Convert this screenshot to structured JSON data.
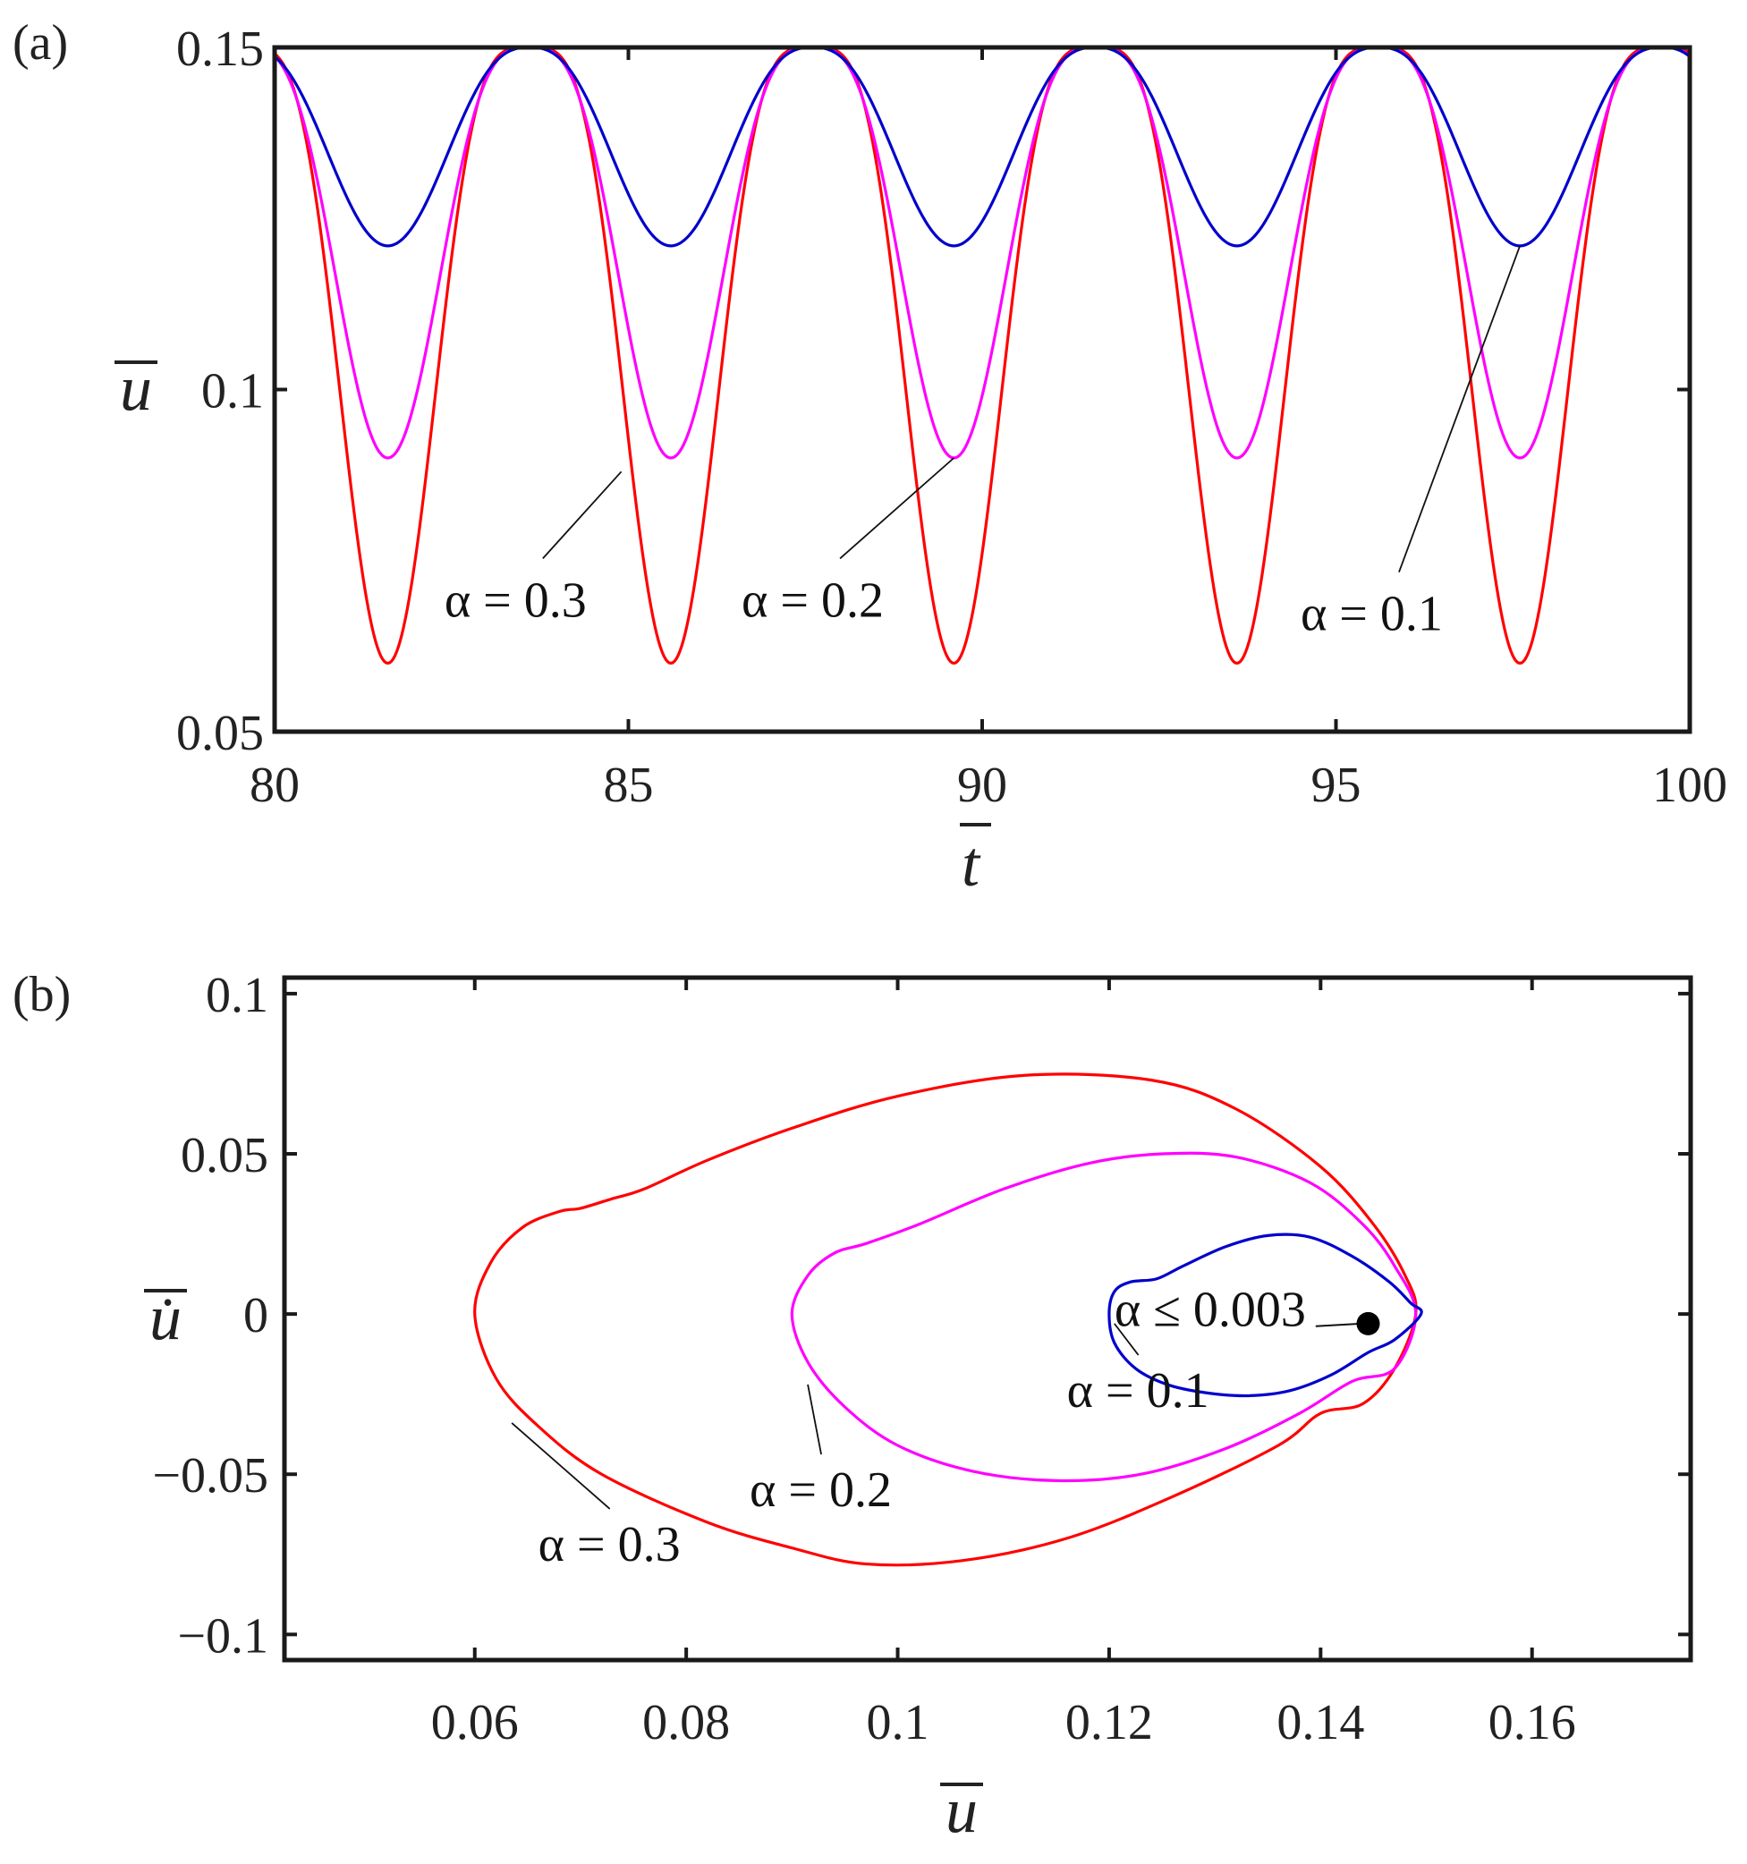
{
  "chart_data": [
    {
      "panel": "(a)",
      "type": "line",
      "xlabel": "t",
      "ylabel": "u",
      "xlim": [
        80,
        100
      ],
      "ylim": [
        0.05,
        0.15
      ],
      "xticks": [
        80,
        85,
        90,
        95,
        100
      ],
      "xtick_labels": [
        "80",
        "85",
        "90",
        "95",
        "100"
      ],
      "yticks": [
        0.05,
        0.1,
        0.15
      ],
      "ytick_labels": [
        "0.05",
        "0.1",
        "0.15"
      ],
      "period": 4,
      "first_max_t": 83.6,
      "first_min_t": 81.6,
      "series": [
        {
          "name": "α = 0.3",
          "label": "α = 0.3",
          "color": "#ff0000",
          "max": 0.15,
          "min": 0.06
        },
        {
          "name": "α = 0.2",
          "label": "α = 0.2",
          "color": "#ff00ff",
          "max": 0.15,
          "min": 0.09
        },
        {
          "name": "α = 0.1",
          "label": "α = 0.1",
          "color": "#0000cc",
          "max": 0.15,
          "min": 0.121
        }
      ],
      "annotations": [
        {
          "text": "α = 0.3",
          "series": "α = 0.3",
          "label_at": [
            82.4,
            0.074
          ],
          "points_to": [
            84.9,
            0.088
          ]
        },
        {
          "text": "α = 0.2",
          "series": "α = 0.2",
          "label_at": [
            86.6,
            0.074
          ],
          "points_to": [
            89.6,
            0.09
          ]
        },
        {
          "text": "α = 0.1",
          "series": "α = 0.1",
          "label_at": [
            94.5,
            0.072
          ],
          "points_to": [
            97.6,
            0.121
          ]
        }
      ]
    },
    {
      "panel": "(b)",
      "type": "line",
      "xlabel": "u",
      "ylabel": "u̇",
      "xlim": [
        0.042,
        0.175
      ],
      "ylim": [
        -0.108,
        0.105
      ],
      "xticks": [
        0.06,
        0.08,
        0.1,
        0.12,
        0.14,
        0.16
      ],
      "xtick_labels": [
        "0.06",
        "0.08",
        "0.1",
        "0.12",
        "0.14",
        "0.16"
      ],
      "yticks": [
        -0.1,
        -0.05,
        0,
        0.05,
        0.1
      ],
      "ytick_labels": [
        "−0.1",
        "−0.05",
        "0",
        "0.05",
        "0.1"
      ],
      "series": [
        {
          "name": "α = 0.3",
          "color": "#ff0000",
          "upper": [
            [
              0.06,
              0
            ],
            [
              0.0615,
              0.016
            ],
            [
              0.0645,
              0.027
            ],
            [
              0.068,
              0.032
            ],
            [
              0.07,
              0.033
            ],
            [
              0.073,
              0.036
            ],
            [
              0.076,
              0.039
            ],
            [
              0.082,
              0.048
            ],
            [
              0.09,
              0.058
            ],
            [
              0.1,
              0.068
            ],
            [
              0.112,
              0.0745
            ],
            [
              0.124,
              0.073
            ],
            [
              0.132,
              0.064
            ],
            [
              0.14,
              0.046
            ],
            [
              0.145,
              0.028
            ],
            [
              0.148,
              0.012
            ],
            [
              0.149,
              0
            ]
          ],
          "lower": [
            [
              0.06,
              0
            ],
            [
              0.062,
              -0.02
            ],
            [
              0.066,
              -0.035
            ],
            [
              0.072,
              -0.05
            ],
            [
              0.082,
              -0.065
            ],
            [
              0.09,
              -0.073
            ],
            [
              0.097,
              -0.078
            ],
            [
              0.106,
              -0.077
            ],
            [
              0.116,
              -0.07
            ],
            [
              0.126,
              -0.057
            ],
            [
              0.136,
              -0.041
            ],
            [
              0.14,
              -0.031
            ],
            [
              0.144,
              -0.028
            ],
            [
              0.147,
              -0.017
            ],
            [
              0.149,
              0
            ]
          ]
        },
        {
          "name": "α = 0.2",
          "color": "#ff00ff",
          "upper": [
            [
              0.09,
              0
            ],
            [
              0.0915,
              0.012
            ],
            [
              0.094,
              0.019
            ],
            [
              0.097,
              0.022
            ],
            [
              0.102,
              0.028
            ],
            [
              0.11,
              0.039
            ],
            [
              0.118,
              0.047
            ],
            [
              0.125,
              0.05
            ],
            [
              0.132,
              0.049
            ],
            [
              0.139,
              0.041
            ],
            [
              0.144,
              0.028
            ],
            [
              0.147,
              0.015
            ],
            [
              0.149,
              0
            ]
          ],
          "lower": [
            [
              0.09,
              0
            ],
            [
              0.0915,
              -0.015
            ],
            [
              0.095,
              -0.029
            ],
            [
              0.1,
              -0.041
            ],
            [
              0.107,
              -0.049
            ],
            [
              0.115,
              -0.052
            ],
            [
              0.123,
              -0.05
            ],
            [
              0.131,
              -0.042
            ],
            [
              0.138,
              -0.031
            ],
            [
              0.143,
              -0.021
            ],
            [
              0.147,
              -0.017
            ],
            [
              0.149,
              0
            ]
          ]
        },
        {
          "name": "α = 0.1",
          "color": "#0000cc",
          "upper": [
            [
              0.12,
              0
            ],
            [
              0.1205,
              0.007
            ],
            [
              0.122,
              0.01
            ],
            [
              0.1245,
              0.011
            ],
            [
              0.127,
              0.015
            ],
            [
              0.131,
              0.021
            ],
            [
              0.135,
              0.0245
            ],
            [
              0.139,
              0.024
            ],
            [
              0.143,
              0.018
            ],
            [
              0.1465,
              0.01
            ],
            [
              0.1485,
              0.0035
            ],
            [
              0.1495,
              0
            ]
          ],
          "lower": [
            [
              0.12,
              0
            ],
            [
              0.1205,
              -0.009
            ],
            [
              0.1225,
              -0.017
            ],
            [
              0.1255,
              -0.022
            ],
            [
              0.129,
              -0.0245
            ],
            [
              0.133,
              -0.0255
            ],
            [
              0.137,
              -0.024
            ],
            [
              0.141,
              -0.019
            ],
            [
              0.1445,
              -0.012
            ],
            [
              0.147,
              -0.008
            ],
            [
              0.1495,
              0
            ]
          ]
        }
      ],
      "fixed_point": {
        "label": "α ≤ 0.003",
        "u": 0.1445,
        "udot": -0.003
      },
      "annotations": [
        {
          "text": "α = 0.3",
          "series": "α = 0.3",
          "label_at": [
            0.066,
            -0.077
          ],
          "points_to": [
            0.0635,
            -0.034
          ]
        },
        {
          "text": "α = 0.2",
          "series": "α = 0.2",
          "label_at": [
            0.086,
            -0.06
          ],
          "points_to": [
            0.0915,
            -0.022
          ]
        },
        {
          "text": "α = 0.1",
          "series": "α = 0.1",
          "label_at": [
            0.116,
            -0.029
          ],
          "points_to": [
            0.1205,
            -0.003
          ]
        },
        {
          "text": "α ≤ 0.003",
          "series": "fixed point",
          "label_at": [
            0.1205,
            -0.001
          ],
          "points_to": [
            0.1445,
            -0.003
          ]
        }
      ]
    }
  ]
}
